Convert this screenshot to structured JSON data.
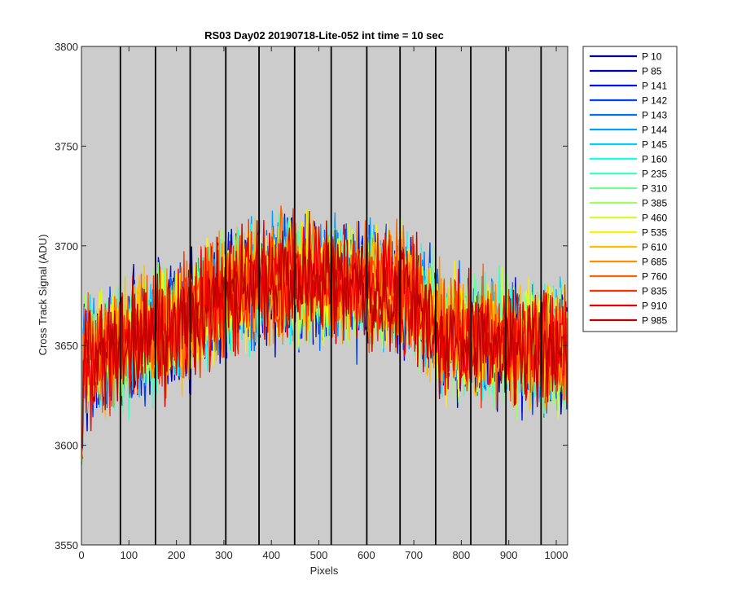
{
  "chart_data": {
    "type": "line",
    "title": "RS03 Day02 20190718-Lite-052 int time = 10 sec",
    "xlabel": "Pixels",
    "ylabel": "Cross Track Signal (ADU)",
    "xlim": [
      0,
      1024
    ],
    "ylim": [
      3550,
      3800
    ],
    "xticks": [
      0,
      100,
      200,
      300,
      400,
      500,
      600,
      700,
      800,
      900,
      1000
    ],
    "yticks": [
      3550,
      3600,
      3650,
      3700,
      3750,
      3800
    ],
    "plot_background": "#cccccc",
    "grid": false,
    "vertical_lines_x": [
      82,
      156,
      229,
      304,
      374,
      449,
      526,
      601,
      671,
      746,
      820,
      894,
      968
    ],
    "legend_position": "outside-right",
    "trend": {
      "x": [
        0,
        100,
        200,
        300,
        400,
        500,
        600,
        700,
        760,
        800,
        900,
        1024
      ],
      "y": [
        3642,
        3652,
        3660,
        3676,
        3683,
        3684,
        3680,
        3675,
        3656,
        3655,
        3651,
        3648
      ]
    },
    "noise_amplitude_adu": 24,
    "series": [
      {
        "name": "P 10",
        "color": "#00008f"
      },
      {
        "name": "P 85",
        "color": "#0000bf"
      },
      {
        "name": "P 141",
        "color": "#0010ef"
      },
      {
        "name": "P 142",
        "color": "#0040ff"
      },
      {
        "name": "P 143",
        "color": "#0070ff"
      },
      {
        "name": "P 144",
        "color": "#009fff"
      },
      {
        "name": "P 145",
        "color": "#00cfff"
      },
      {
        "name": "P 160",
        "color": "#10ffef"
      },
      {
        "name": "P 235",
        "color": "#40ffbf"
      },
      {
        "name": "P 310",
        "color": "#70ff8f"
      },
      {
        "name": "P 385",
        "color": "#9fff60"
      },
      {
        "name": "P 460",
        "color": "#cfff30"
      },
      {
        "name": "P 535",
        "color": "#ffef00"
      },
      {
        "name": "P 610",
        "color": "#ffbf00"
      },
      {
        "name": "P 685",
        "color": "#ff8f00"
      },
      {
        "name": "P 760",
        "color": "#ff6000"
      },
      {
        "name": "P 835",
        "color": "#ff3000"
      },
      {
        "name": "P 910",
        "color": "#ef0000"
      },
      {
        "name": "P 985",
        "color": "#bf0000"
      }
    ]
  }
}
